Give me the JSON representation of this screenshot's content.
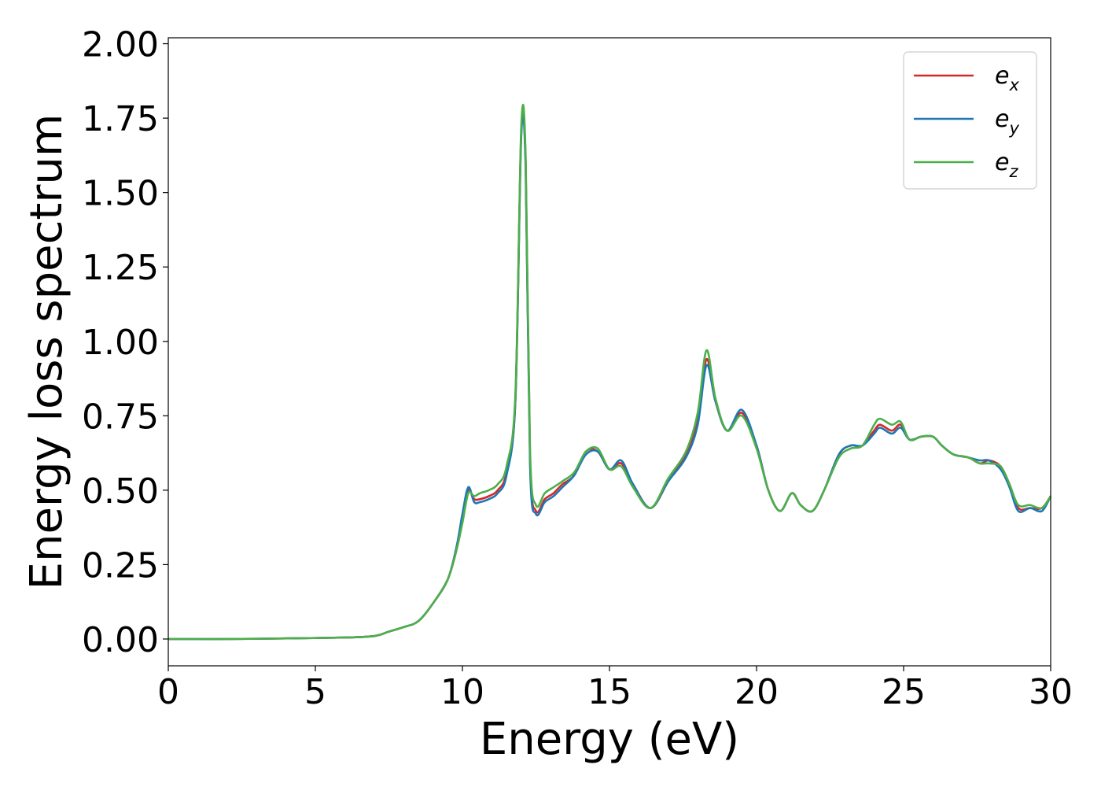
{
  "chart_data": {
    "type": "line",
    "title": "",
    "xlabel": "Energy (eV)",
    "ylabel": "Energy loss spectrum",
    "xlim": [
      0,
      30
    ],
    "ylim": [
      -0.09,
      2.02
    ],
    "xticks": [
      0,
      5,
      10,
      15,
      20,
      25,
      30
    ],
    "xtick_labels": [
      "0",
      "5",
      "10",
      "15",
      "20",
      "25",
      "30"
    ],
    "yticks": [
      0.0,
      0.25,
      0.5,
      0.75,
      1.0,
      1.25,
      1.5,
      1.75,
      2.0
    ],
    "ytick_labels": [
      "0.00",
      "0.25",
      "0.50",
      "0.75",
      "1.00",
      "1.25",
      "1.50",
      "1.75",
      "2.00"
    ],
    "grid": false,
    "legend_position": "top-right",
    "series": [
      {
        "name": "e_x",
        "label_base": "e",
        "label_sub": "x",
        "color": "#d62728",
        "x": [
          0,
          2,
          4,
          6,
          7,
          7.5,
          8,
          8.5,
          9,
          9.5,
          9.8,
          10,
          10.2,
          10.4,
          10.6,
          10.9,
          11.2,
          11.5,
          11.8,
          12.0,
          12.15,
          12.3,
          12.5,
          12.8,
          13.1,
          13.4,
          13.8,
          14.2,
          14.6,
          15.0,
          15.4,
          15.8,
          16.4,
          17.0,
          17.6,
          18.0,
          18.3,
          18.6,
          19.0,
          19.5,
          20.0,
          20.4,
          20.8,
          21.2,
          21.5,
          21.9,
          22.3,
          22.8,
          23.2,
          23.6,
          24.0,
          24.2,
          24.6,
          24.9,
          25.2,
          25.6,
          26.0,
          26.3,
          26.7,
          27.2,
          27.6,
          27.9,
          28.3,
          28.6,
          28.9,
          29.3,
          29.7,
          30.0
        ],
        "y": [
          0.0,
          0.0,
          0.002,
          0.005,
          0.01,
          0.025,
          0.04,
          0.06,
          0.12,
          0.2,
          0.3,
          0.4,
          0.5,
          0.47,
          0.47,
          0.48,
          0.5,
          0.56,
          0.8,
          1.7,
          1.6,
          0.6,
          0.43,
          0.47,
          0.49,
          0.52,
          0.55,
          0.63,
          0.63,
          0.57,
          0.59,
          0.52,
          0.44,
          0.53,
          0.62,
          0.74,
          0.94,
          0.8,
          0.7,
          0.76,
          0.65,
          0.5,
          0.43,
          0.49,
          0.45,
          0.43,
          0.5,
          0.62,
          0.65,
          0.65,
          0.7,
          0.72,
          0.7,
          0.72,
          0.67,
          0.68,
          0.68,
          0.65,
          0.62,
          0.61,
          0.59,
          0.6,
          0.58,
          0.52,
          0.44,
          0.44,
          0.44,
          0.48
        ]
      },
      {
        "name": "e_y",
        "label_base": "e",
        "label_sub": "y",
        "color": "#1f77b4",
        "x": [
          0,
          2,
          4,
          6,
          7,
          7.5,
          8,
          8.5,
          9,
          9.5,
          9.8,
          10,
          10.2,
          10.4,
          10.6,
          10.9,
          11.2,
          11.5,
          11.8,
          12.0,
          12.15,
          12.3,
          12.5,
          12.8,
          13.1,
          13.4,
          13.8,
          14.2,
          14.6,
          15.0,
          15.4,
          15.8,
          16.4,
          17.0,
          17.6,
          18.0,
          18.3,
          18.6,
          19.0,
          19.5,
          20.0,
          20.4,
          20.8,
          21.2,
          21.5,
          21.9,
          22.3,
          22.8,
          23.2,
          23.6,
          24.0,
          24.2,
          24.6,
          24.9,
          25.2,
          25.6,
          26.0,
          26.3,
          26.7,
          27.2,
          27.6,
          27.9,
          28.3,
          28.6,
          28.9,
          29.3,
          29.7,
          30.0
        ],
        "y": [
          0.0,
          0.0,
          0.002,
          0.005,
          0.01,
          0.025,
          0.04,
          0.06,
          0.12,
          0.2,
          0.31,
          0.42,
          0.51,
          0.46,
          0.46,
          0.47,
          0.49,
          0.55,
          0.8,
          1.69,
          1.58,
          0.58,
          0.42,
          0.46,
          0.48,
          0.51,
          0.55,
          0.62,
          0.63,
          0.57,
          0.6,
          0.52,
          0.44,
          0.53,
          0.61,
          0.72,
          0.92,
          0.8,
          0.7,
          0.77,
          0.65,
          0.5,
          0.43,
          0.49,
          0.45,
          0.43,
          0.5,
          0.62,
          0.65,
          0.65,
          0.69,
          0.71,
          0.69,
          0.71,
          0.67,
          0.68,
          0.68,
          0.65,
          0.62,
          0.61,
          0.6,
          0.6,
          0.57,
          0.51,
          0.43,
          0.44,
          0.43,
          0.48
        ]
      },
      {
        "name": "e_z",
        "label_base": "e",
        "label_sub": "z",
        "color": "#4daf4a",
        "x": [
          0,
          2,
          4,
          6,
          7,
          7.5,
          8,
          8.5,
          9,
          9.5,
          9.8,
          10,
          10.2,
          10.4,
          10.6,
          10.9,
          11.2,
          11.5,
          11.8,
          12.0,
          12.15,
          12.3,
          12.5,
          12.8,
          13.1,
          13.4,
          13.8,
          14.2,
          14.6,
          15.0,
          15.4,
          15.8,
          16.4,
          17.0,
          17.6,
          18.0,
          18.3,
          18.6,
          19.0,
          19.5,
          20.0,
          20.4,
          20.8,
          21.2,
          21.5,
          21.9,
          22.3,
          22.8,
          23.2,
          23.6,
          24.0,
          24.2,
          24.6,
          24.9,
          25.2,
          25.6,
          26.0,
          26.3,
          26.7,
          27.2,
          27.6,
          27.9,
          28.3,
          28.6,
          28.9,
          29.3,
          29.7,
          30.0
        ],
        "y": [
          0.0,
          0.0,
          0.002,
          0.005,
          0.01,
          0.025,
          0.04,
          0.06,
          0.12,
          0.2,
          0.3,
          0.39,
          0.49,
          0.48,
          0.49,
          0.5,
          0.52,
          0.58,
          0.82,
          1.72,
          1.62,
          0.63,
          0.45,
          0.49,
          0.51,
          0.53,
          0.56,
          0.63,
          0.64,
          0.57,
          0.58,
          0.51,
          0.44,
          0.54,
          0.63,
          0.76,
          0.97,
          0.81,
          0.7,
          0.75,
          0.64,
          0.5,
          0.43,
          0.49,
          0.45,
          0.43,
          0.5,
          0.61,
          0.64,
          0.65,
          0.72,
          0.74,
          0.72,
          0.73,
          0.67,
          0.68,
          0.68,
          0.65,
          0.62,
          0.61,
          0.59,
          0.59,
          0.58,
          0.52,
          0.45,
          0.45,
          0.44,
          0.48
        ]
      }
    ]
  }
}
